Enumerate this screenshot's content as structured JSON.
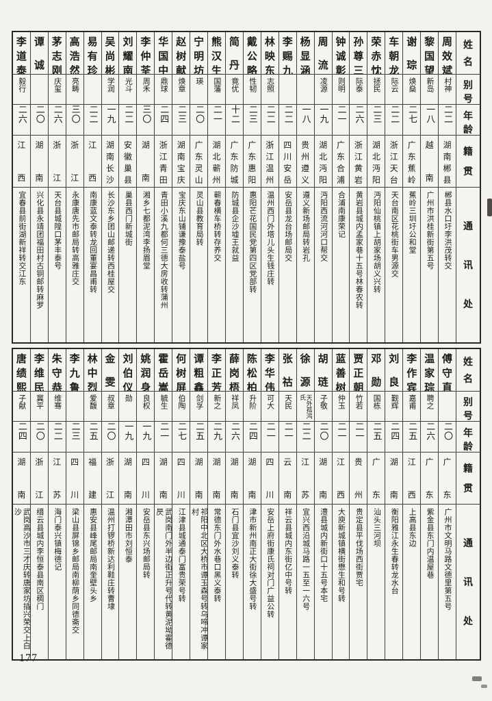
{
  "page": {
    "number": "177"
  },
  "headers": {
    "name": "姓名",
    "alias": "别号",
    "age": "年龄",
    "origin": "籍贯",
    "address": "通讯处"
  },
  "tables": [
    {
      "entries": [
        {
          "name": "周效斌",
          "alias": "村神",
          "age": "二二",
          "origin": "湖南郴县",
          "address": "郴县水口圩李洪茂转交"
        },
        {
          "name": "黎国望",
          "alias": "新岛",
          "age": "一八",
          "origin": "越南",
          "address": "广州市洪桂新街第五号"
        },
        {
          "name": "谢琮",
          "alias": "焕燊",
          "age": "二七",
          "origin": "广东蕉岭",
          "address": "蕉岭三圳圩公和堂"
        },
        {
          "name": "车朝龙",
          "alias": "际云",
          "age": "二二",
          "origin": "浙江天台",
          "address": "天台南区花桃街车男源交"
        },
        {
          "name": "荣赤忱",
          "alias": "拯民",
          "age": "二三",
          "origin": "湖北沔阳",
          "address": "沔阳仙桃镇上胡家场胡义兴转"
        },
        {
          "name": "孙尊三",
          "alias": "际泰",
          "age": "二六",
          "origin": "浙江黄岩",
          "address": "黄岩县城内孟家巷十五号林春农转"
        },
        {
          "name": "钟诚彰",
          "alias": "则明",
          "age": "二一",
          "origin": "广东合浦",
          "address": "合浦南康荣记"
        },
        {
          "name": "周流",
          "alias": "凌源",
          "age": "一九",
          "origin": "湖北沔阳",
          "address": "沔阳西流河河口帮交"
        },
        {
          "name": "杨显涵",
          "alias": "",
          "age": "一八",
          "origin": "贵州遵义",
          "address": "遵义新场邮局转岩孔"
        },
        {
          "name": "李赐九",
          "alias": "",
          "age": "二二",
          "origin": "四川安岳",
          "address": "安岳县龙台场邮局交"
        },
        {
          "name": "林映东",
          "alias": "志照",
          "age": "二二",
          "origin": "浙江温州",
          "address": "温州西门外塔儿头生钱庄转"
        },
        {
          "name": "戴公略",
          "alias": "性韧",
          "age": "二三",
          "origin": "广东惠阳",
          "address": "惠阳芒花国民党第四区党部转"
        },
        {
          "name": "简丹",
          "alias": "竟优",
          "age": "十二",
          "origin": "广东防城",
          "address": "防城县企沙墟王就益"
        },
        {
          "name": "熊汉生",
          "alias": "国藩",
          "age": "二一",
          "origin": "湖北蕲州",
          "address": "蕲春横车桥转存养交"
        },
        {
          "name": "宁明坊",
          "alias": "瑛",
          "age": "二〇",
          "origin": "广东灵山",
          "address": "灵山县教育局转"
        },
        {
          "name": "赵树献",
          "alias": "焕章",
          "age": "二三",
          "origin": "湖南宝庆",
          "address": "宝庆东山铺谦豫泰盐号"
        },
        {
          "name": "华国中",
          "alias": "鼎球",
          "age": "二四",
          "origin": "浙江青田",
          "address": "青田小溪九都何三德大房收转蒲州"
        },
        {
          "name": "李仲荃",
          "alias": "周禾",
          "age": "三〇",
          "origin": "湖南",
          "address": "湘乡七都泥湾李扬眉堂"
        },
        {
          "name": "刘耀南",
          "alias": "光斗",
          "age": "二二",
          "origin": "安徽巢县",
          "address": "巢县西门新城街"
        },
        {
          "name": "吴尚彬",
          "alias": "学润",
          "age": "一九",
          "origin": "湖南长沙",
          "address": "长沙东乡团山邮递转西桂屋交"
        },
        {
          "name": "易有珍",
          "alias": "",
          "age": "二二",
          "origin": "江西",
          "address": "南康蓝文泰转龙回董宴昌甫转"
        },
        {
          "name": "高浩然",
          "alias": "亮畴",
          "age": "三〇",
          "origin": "浙江",
          "address": "永康唐先市邮局转高雅庄交"
        },
        {
          "name": "茅志刚",
          "alias": "庆玺",
          "age": "二六",
          "origin": "浙江",
          "address": "天台县城隍口茅丰泰号"
        },
        {
          "name": "谭诚",
          "alias": "",
          "age": "二〇",
          "origin": "湖南",
          "address": "兴化县永靖团福田村古铜邮转麻罗"
        },
        {
          "name": "李道泰",
          "alias": "毅行",
          "age": "二六",
          "origin": "江西",
          "address": "宜春县前街湖新祥转交江东"
        }
      ]
    },
    {
      "entries": [
        {
          "name": "傅守直",
          "alias": "",
          "age": "二〇",
          "origin": "广东",
          "address": "广州市文明马路文德里第五号"
        },
        {
          "name": "温家琮",
          "alias": "聘之",
          "age": "二六",
          "origin": "广东",
          "address": "紫金县东门内温屋巷"
        },
        {
          "name": "李作宾",
          "alias": "嘉甫",
          "age": "二五",
          "origin": "江西",
          "address": "上高县东边"
        },
        {
          "name": "刘良",
          "alias": "觐辉",
          "age": "二四",
          "origin": "湖南",
          "address": "衡阳雅江永生春转龙水台"
        },
        {
          "name": "邓勋",
          "alias": "国栋",
          "age": "二五",
          "origin": "广东",
          "address": "汕头三河坝"
        },
        {
          "name": "贾正朝",
          "alias": "竹若",
          "age": "二一",
          "origin": "贵州",
          "address": "贵定县平伐场西街贾宅"
        },
        {
          "name": "蓝善树",
          "alias": "仲玉",
          "age": "二一",
          "origin": "江西",
          "address": "大庾新城镇横街懋生和号转"
        },
        {
          "name": "胡琏",
          "alias": "子敬",
          "age": "二〇",
          "origin": "湖南",
          "address": "澧县城内新街口十五号本宅"
        },
        {
          "name": "徐源",
          "alias": "天外孤鸿氏",
          "age": "二二",
          "origin": "江苏",
          "address": "宜兴西沿城马路一五至一六号"
        },
        {
          "name": "张祜",
          "alias": "天民",
          "age": "二一",
          "origin": "云南",
          "address": "祥云县城内东街亿中号转"
        },
        {
          "name": "李华伟",
          "alias": "可大",
          "age": "二一",
          "origin": "四川",
          "address": "安岳上府街康氏祠对门广益公转"
        },
        {
          "name": "陈松柏",
          "alias": "升阶",
          "age": "二四",
          "origin": "湖南",
          "address": "津市新州南正大街徐大盛号转"
        },
        {
          "name": "薛岗梧",
          "alias": "祥凤",
          "age": "二六",
          "origin": "湖南",
          "address": "石门县宜沙刘义泰转"
        },
        {
          "name": "李正芳",
          "alias": "新之",
          "age": "二九",
          "origin": "湖南",
          "address": "常德东门外水巷口黑义泰转"
        },
        {
          "name": "谭粗鑫",
          "alias": "剑孚",
          "age": "二五",
          "origin": "湖南",
          "address": "祁阳中北区大桥市谭玉森号转乌啼冲谭家村"
        },
        {
          "name": "何树屏",
          "alias": "伯陶",
          "age": "二七",
          "origin": "四川",
          "address": "江津县城通泰门富贵荣号转"
        },
        {
          "name": "霍岳嵩",
          "alias": "毓生",
          "age": "二一",
          "origin": "湖南",
          "address": "武岗南门外半边街正升号代转黄泥坳霍德昃"
        },
        {
          "name": "姚润身",
          "alias": "良权",
          "age": "一九",
          "origin": "四川",
          "address": "安岳县东兴场邮局转"
        },
        {
          "name": "刘伯仪",
          "alias": "勋",
          "age": "一九",
          "origin": "湖南",
          "address": "湘潭田市刘恒泰"
        },
        {
          "name": "金雯",
          "alias": "叔章",
          "age": "二〇",
          "origin": "浙江",
          "address": "温州打锣桥新达利鞋庄转曹埭"
        },
        {
          "name": "林中烈",
          "alias": "爱馥",
          "age": "二五",
          "origin": "福建",
          "address": "惠安县峰尾邮局南奎壁头乡"
        },
        {
          "name": "李九鲁",
          "alias": "",
          "age": "二三",
          "origin": "四川",
          "address": "梁山县屏锦乡邮局南柳荫乡同德斋交"
        },
        {
          "name": "朱守恭",
          "alias": "维骞",
          "age": "二二",
          "origin": "江苏",
          "address": "海门泰兴镇梅德记"
        },
        {
          "name": "李维民",
          "alias": "冀平",
          "age": "二〇",
          "origin": "浙江",
          "address": "缙云县城内李恒泰县南区稠门"
        },
        {
          "name": "唐绩熙",
          "alias": "子献",
          "age": "二四",
          "origin": "湖南",
          "address": "武岗高沙市三才庆转唐家坊插兴荣交上白沙"
        }
      ]
    }
  ]
}
